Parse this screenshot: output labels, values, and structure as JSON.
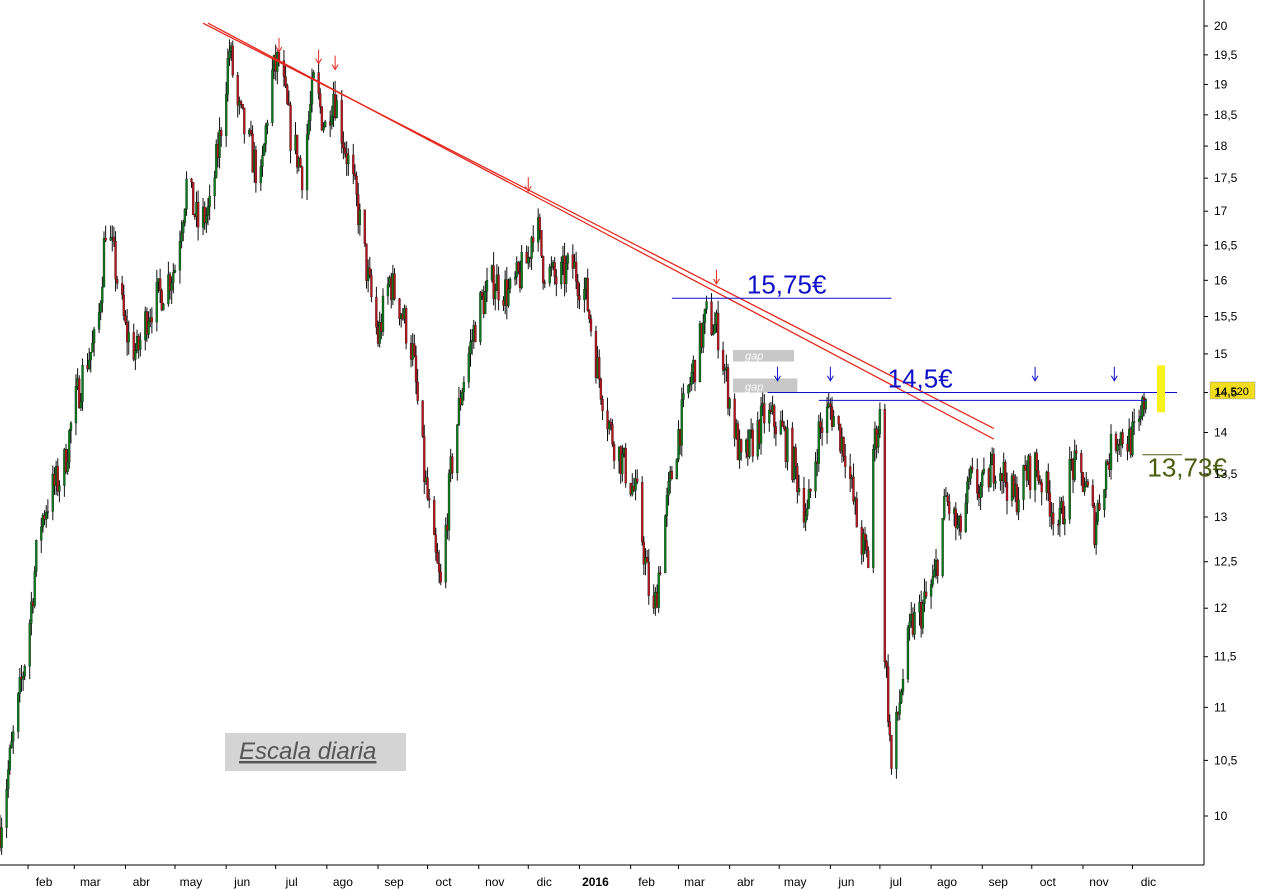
{
  "chart_data": {
    "type": "candlestick",
    "title": "",
    "xlabel": "",
    "ylabel": "",
    "ylim": [
      9.5,
      20.2
    ],
    "y_scale": "log",
    "y_ticks": [
      {
        "value": 10,
        "label": "10"
      },
      {
        "value": 10.5,
        "label": "10,5"
      },
      {
        "value": 11,
        "label": "11"
      },
      {
        "value": 11.5,
        "label": "11,5"
      },
      {
        "value": 12,
        "label": "12"
      },
      {
        "value": 12.5,
        "label": "12,5"
      },
      {
        "value": 13,
        "label": "13"
      },
      {
        "value": 13.5,
        "label": "13,5"
      },
      {
        "value": 14,
        "label": "14"
      },
      {
        "value": 14.5,
        "label": "14,5"
      },
      {
        "value": 15,
        "label": "15"
      },
      {
        "value": 15.5,
        "label": "15,5"
      },
      {
        "value": 16,
        "label": "16"
      },
      {
        "value": 16.5,
        "label": "16,5"
      },
      {
        "value": 17,
        "label": "17"
      },
      {
        "value": 17.5,
        "label": "17,5"
      },
      {
        "value": 18,
        "label": "18"
      },
      {
        "value": 18.5,
        "label": "18,5"
      },
      {
        "value": 19,
        "label": "19"
      },
      {
        "value": 19.5,
        "label": "19,5"
      },
      {
        "value": 20,
        "label": "20"
      }
    ],
    "x_range": [
      "2015-01-15",
      "2016-12-31"
    ],
    "month_ticks": [
      {
        "date": "2015-02-01",
        "label": "feb",
        "bold": false
      },
      {
        "date": "2015-03-01",
        "label": "mar",
        "bold": false
      },
      {
        "date": "2015-04-01",
        "label": "abr",
        "bold": false
      },
      {
        "date": "2015-05-01",
        "label": "may",
        "bold": false
      },
      {
        "date": "2015-06-01",
        "label": "jun",
        "bold": false
      },
      {
        "date": "2015-07-01",
        "label": "jul",
        "bold": false
      },
      {
        "date": "2015-08-01",
        "label": "ago",
        "bold": false
      },
      {
        "date": "2015-09-01",
        "label": "sep",
        "bold": false
      },
      {
        "date": "2015-10-01",
        "label": "oct",
        "bold": false
      },
      {
        "date": "2015-11-01",
        "label": "nov",
        "bold": false
      },
      {
        "date": "2015-12-01",
        "label": "dic",
        "bold": false
      },
      {
        "date": "2016-01-01",
        "label": "2016",
        "bold": true
      },
      {
        "date": "2016-02-01",
        "label": "feb",
        "bold": false
      },
      {
        "date": "2016-03-01",
        "label": "mar",
        "bold": false
      },
      {
        "date": "2016-04-01",
        "label": "abr",
        "bold": false
      },
      {
        "date": "2016-05-01",
        "label": "may",
        "bold": false
      },
      {
        "date": "2016-06-01",
        "label": "jun",
        "bold": false
      },
      {
        "date": "2016-07-01",
        "label": "jul",
        "bold": false
      },
      {
        "date": "2016-08-01",
        "label": "ago",
        "bold": false
      },
      {
        "date": "2016-09-01",
        "label": "sep",
        "bold": false
      },
      {
        "date": "2016-10-01",
        "label": "oct",
        "bold": false
      },
      {
        "date": "2016-11-01",
        "label": "nov",
        "bold": false
      },
      {
        "date": "2016-12-01",
        "label": "dic",
        "bold": false
      }
    ],
    "price_path": [
      [
        "2015-01-15",
        9.9
      ],
      [
        "2015-01-25",
        10.9
      ],
      [
        "2015-02-01",
        11.7
      ],
      [
        "2015-02-08",
        12.9
      ],
      [
        "2015-02-15",
        13.3
      ],
      [
        "2015-02-22",
        13.5
      ],
      [
        "2015-03-01",
        14.3
      ],
      [
        "2015-03-08",
        14.9
      ],
      [
        "2015-03-15",
        15.2
      ],
      [
        "2015-03-20",
        16.8
      ],
      [
        "2015-03-25",
        16.3
      ],
      [
        "2015-04-01",
        15.3
      ],
      [
        "2015-04-08",
        15.0
      ],
      [
        "2015-04-15",
        15.6
      ],
      [
        "2015-04-22",
        15.8
      ],
      [
        "2015-05-01",
        16.2
      ],
      [
        "2015-05-08",
        17.4
      ],
      [
        "2015-05-15",
        16.8
      ],
      [
        "2015-05-22",
        17.0
      ],
      [
        "2015-05-28",
        18.1
      ],
      [
        "2015-06-03",
        19.6
      ],
      [
        "2015-06-08",
        18.6
      ],
      [
        "2015-06-15",
        18.0
      ],
      [
        "2015-06-22",
        17.4
      ],
      [
        "2015-06-28",
        19.1
      ],
      [
        "2015-07-03",
        19.4
      ],
      [
        "2015-07-10",
        18.2
      ],
      [
        "2015-07-17",
        17.6
      ],
      [
        "2015-07-24",
        19.0
      ],
      [
        "2015-07-31",
        18.3
      ],
      [
        "2015-08-05",
        18.9
      ],
      [
        "2015-08-12",
        18.0
      ],
      [
        "2015-08-20",
        17.0
      ],
      [
        "2015-08-26",
        16.0
      ],
      [
        "2015-09-01",
        15.2
      ],
      [
        "2015-09-08",
        16.0
      ],
      [
        "2015-09-15",
        15.6
      ],
      [
        "2015-09-22",
        15.0
      ],
      [
        "2015-09-29",
        13.5
      ],
      [
        "2015-10-05",
        12.6
      ],
      [
        "2015-10-09",
        12.2
      ],
      [
        "2015-10-15",
        13.5
      ],
      [
        "2015-10-22",
        14.6
      ],
      [
        "2015-11-01",
        15.6
      ],
      [
        "2015-11-10",
        16.0
      ],
      [
        "2015-11-20",
        15.8
      ],
      [
        "2015-12-01",
        16.3
      ],
      [
        "2015-12-05",
        17.0
      ],
      [
        "2015-12-10",
        16.2
      ],
      [
        "2015-12-18",
        16.0
      ],
      [
        "2015-12-28",
        16.2
      ],
      [
        "2016-01-05",
        15.8
      ],
      [
        "2016-01-12",
        14.8
      ],
      [
        "2016-01-20",
        14.0
      ],
      [
        "2016-01-28",
        13.6
      ],
      [
        "2016-02-05",
        13.2
      ],
      [
        "2016-02-12",
        12.2
      ],
      [
        "2016-02-15",
        11.9
      ],
      [
        "2016-02-22",
        13.0
      ],
      [
        "2016-03-01",
        14.0
      ],
      [
        "2016-03-10",
        14.8
      ],
      [
        "2016-03-18",
        15.5
      ],
      [
        "2016-03-25",
        15.3
      ],
      [
        "2016-04-01",
        14.4
      ],
      [
        "2016-04-08",
        13.6
      ],
      [
        "2016-04-15",
        13.9
      ],
      [
        "2016-04-22",
        14.2
      ],
      [
        "2016-05-01",
        14.1
      ],
      [
        "2016-05-10",
        13.6
      ],
      [
        "2016-05-18",
        13.0
      ],
      [
        "2016-05-25",
        14.0
      ],
      [
        "2016-06-01",
        14.3
      ],
      [
        "2016-06-10",
        13.8
      ],
      [
        "2016-06-18",
        12.8
      ],
      [
        "2016-06-24",
        12.5
      ],
      [
        "2016-06-27",
        13.8
      ],
      [
        "2016-07-01",
        14.2
      ],
      [
        "2016-07-04",
        11.6
      ],
      [
        "2016-07-08",
        10.4
      ],
      [
        "2016-07-14",
        11.2
      ],
      [
        "2016-07-20",
        11.8
      ],
      [
        "2016-07-27",
        12.0
      ],
      [
        "2016-08-03",
        12.3
      ],
      [
        "2016-08-10",
        13.2
      ],
      [
        "2016-08-18",
        12.8
      ],
      [
        "2016-08-25",
        13.4
      ],
      [
        "2016-09-01",
        13.3
      ],
      [
        "2016-09-10",
        13.7
      ],
      [
        "2016-09-20",
        13.2
      ],
      [
        "2016-09-28",
        13.5
      ],
      [
        "2016-10-03",
        13.6
      ],
      [
        "2016-10-10",
        13.3
      ],
      [
        "2016-10-18",
        12.9
      ],
      [
        "2016-10-25",
        13.6
      ],
      [
        "2016-11-02",
        13.4
      ],
      [
        "2016-11-08",
        12.9
      ],
      [
        "2016-11-15",
        13.6
      ],
      [
        "2016-11-22",
        14.0
      ],
      [
        "2016-11-29",
        13.9
      ],
      [
        "2016-12-05",
        14.0
      ],
      [
        "2016-12-09",
        14.52
      ]
    ],
    "last_price": {
      "value": 14.52,
      "label": "14,520"
    },
    "trendlines": [
      {
        "name": "",
        "color": "#e3291f",
        "from": [
          "2015-05-18",
          20.05
        ],
        "to": [
          "2016-09-08",
          14.05
        ]
      },
      {
        "name": "",
        "color": "#e3291f",
        "from": [
          "2015-05-21",
          20.05
        ],
        "to": [
          "2016-09-08",
          13.92
        ]
      }
    ],
    "levels": [
      {
        "value": 15.75,
        "label": "15,75€",
        "color": "#1010c8",
        "from": "2016-02-26",
        "to": "2016-07-08"
      },
      {
        "value": 14.5,
        "label": "14,5€",
        "color": "#1010c8",
        "from": "2016-04-24",
        "to": "2016-12-28"
      },
      {
        "value": 14.4,
        "label": "",
        "color": "#1010c8",
        "from": "2016-05-25",
        "to": "2016-12-09"
      },
      {
        "value": 13.73,
        "label": "13,73€",
        "color": "#4a5e10",
        "from": "2016-12-07",
        "to": "2016-12-31"
      }
    ],
    "resistance_arrows": [
      {
        "date": "2015-07-03",
        "value": 19.55,
        "color": "#e3291f"
      },
      {
        "date": "2015-07-27",
        "value": 19.35,
        "color": "#e3291f"
      },
      {
        "date": "2015-08-06",
        "value": 19.25,
        "color": "#e3291f"
      },
      {
        "date": "2015-12-01",
        "value": 17.3,
        "color": "#e3291f"
      },
      {
        "date": "2016-03-24",
        "value": 15.95,
        "color": "#e3291f"
      },
      {
        "date": "2016-04-30",
        "value": 14.65,
        "color": "#1010c8"
      },
      {
        "date": "2016-06-01",
        "value": 14.65,
        "color": "#1010c8"
      },
      {
        "date": "2016-10-03",
        "value": 14.65,
        "color": "#1010c8"
      },
      {
        "date": "2016-11-20",
        "value": 14.65,
        "color": "#1010c8"
      }
    ],
    "gaps": [
      {
        "label": "gap",
        "from": "2016-04-03",
        "to": "2016-05-10",
        "low": 14.9,
        "high": 15.05
      },
      {
        "label": "gap",
        "from": "2016-04-03",
        "to": "2016-05-12",
        "low": 14.5,
        "high": 14.68
      }
    ],
    "note": "Escala diaria",
    "up_color": "#0a7a1c",
    "down_color": "#b8141c"
  }
}
